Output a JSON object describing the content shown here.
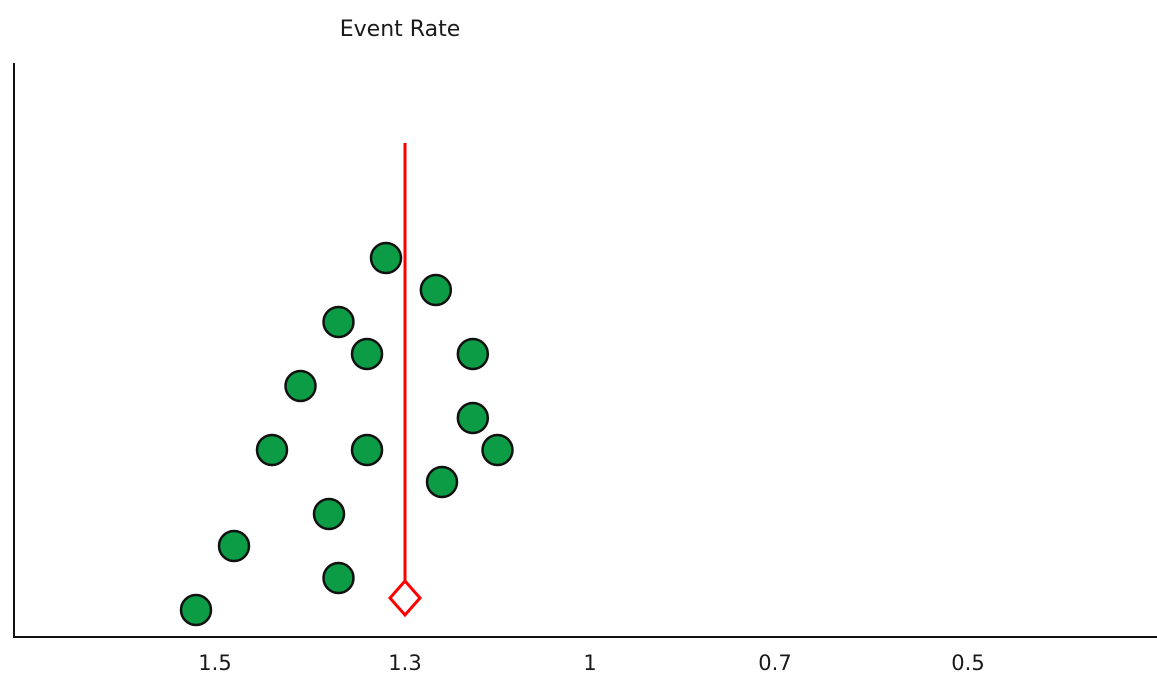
{
  "chart_data": {
    "type": "scatter",
    "title": "Event Rate",
    "xlabel": "",
    "ylabel": "",
    "x_axis": {
      "reversed": true,
      "ticks": [
        1.5,
        1.3,
        1,
        0.7,
        0.5
      ],
      "tick_labels": [
        "1.5",
        "1.3",
        "1",
        "0.7",
        "0.5"
      ]
    },
    "y_axis": {
      "tick_labels": []
    },
    "grid": false,
    "legend": "none",
    "points": [
      {
        "x": 1.52,
        "y": 1
      },
      {
        "x": 1.37,
        "y": 2
      },
      {
        "x": 1.48,
        "y": 3
      },
      {
        "x": 1.38,
        "y": 4
      },
      {
        "x": 1.24,
        "y": 5
      },
      {
        "x": 1.44,
        "y": 6
      },
      {
        "x": 1.34,
        "y": 6
      },
      {
        "x": 1.15,
        "y": 6
      },
      {
        "x": 1.19,
        "y": 7
      },
      {
        "x": 1.41,
        "y": 8
      },
      {
        "x": 1.34,
        "y": 9
      },
      {
        "x": 1.19,
        "y": 9
      },
      {
        "x": 1.37,
        "y": 10
      },
      {
        "x": 1.25,
        "y": 11
      },
      {
        "x": 1.32,
        "y": 12
      }
    ],
    "reference_line": {
      "x": 1.3,
      "color": "#ff0000"
    },
    "reference_marker": {
      "x": 1.3,
      "y": 0.9,
      "shape": "diamond",
      "color": "#ff0000"
    },
    "colors": {
      "point_fill": "#0b9c45",
      "point_stroke": "#111111",
      "axis": "#111111"
    }
  }
}
